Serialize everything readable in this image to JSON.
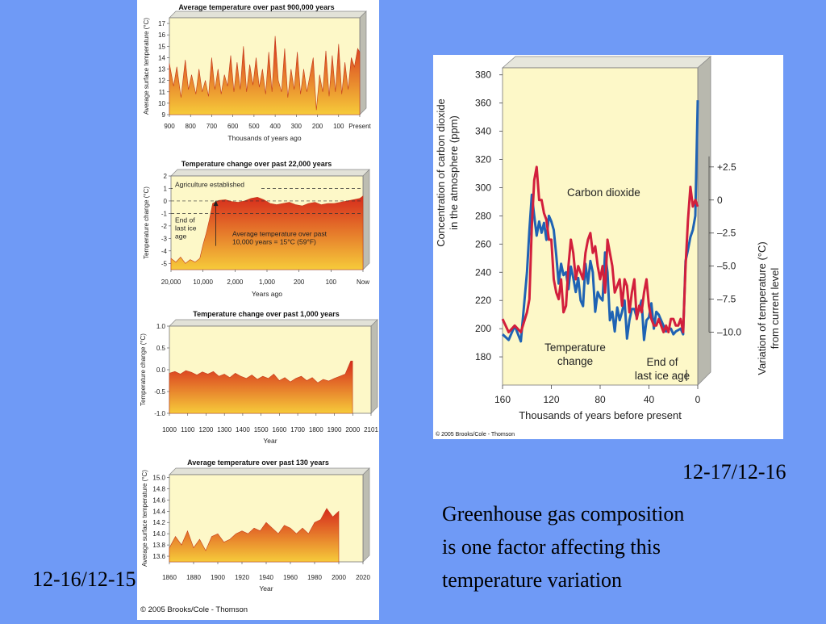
{
  "colors": {
    "background": "#6f9af6",
    "panel_fill": "#fdf8c8",
    "fill_top": "#d62a1c",
    "fill_bottom": "#f6cb3a",
    "co2": "#1f63b4",
    "temp": "#d21f3c"
  },
  "slide": {
    "left_code": "12-16/12-15",
    "right_code": "12-17/12-16",
    "caption_lines": [
      "Greenhouse gas composition",
      "is one factor affecting this",
      "temperature variation"
    ]
  },
  "left_copyright": "© 2005 Brooks/Cole - Thomson",
  "right_copyright": "© 2005 Brooks/Cole - Thomson",
  "chart_data": [
    {
      "type": "area",
      "title": "Average temperature over past 900,000 years",
      "ylabel": "Average surface temperature (°C)",
      "xlabel": "Thousands of years ago",
      "xticks": [
        "900",
        "800",
        "700",
        "600",
        "500",
        "400",
        "300",
        "200",
        "100",
        "Present"
      ],
      "yticks": [
        "9",
        "10",
        "11",
        "12",
        "13",
        "14",
        "15",
        "16",
        "17"
      ],
      "xlim": [
        900,
        0
      ],
      "ylim": [
        9,
        17.5
      ],
      "x": [
        900,
        880,
        865,
        845,
        825,
        810,
        795,
        775,
        760,
        745,
        730,
        715,
        700,
        685,
        670,
        655,
        640,
        625,
        610,
        595,
        580,
        565,
        550,
        535,
        520,
        505,
        490,
        475,
        460,
        445,
        430,
        415,
        400,
        385,
        370,
        355,
        340,
        325,
        310,
        295,
        280,
        265,
        250,
        235,
        220,
        205,
        190,
        175,
        160,
        145,
        130,
        115,
        100,
        85,
        70,
        55,
        40,
        25,
        10,
        0
      ],
      "values": [
        13.5,
        11.5,
        13.2,
        10.5,
        13.8,
        11.2,
        12.5,
        10.8,
        13.0,
        11.0,
        12.0,
        10.6,
        14.0,
        11.2,
        13.0,
        10.8,
        12.5,
        11.5,
        14.2,
        11.0,
        13.6,
        11.2,
        15.0,
        11.0,
        13.4,
        11.6,
        14.0,
        11.4,
        13.0,
        10.8,
        14.5,
        11.0,
        15.9,
        12.0,
        11.0,
        14.8,
        10.5,
        13.0,
        11.2,
        14.5,
        10.8,
        13.0,
        11.0,
        12.5,
        14.0,
        9.4,
        12.5,
        11.0,
        14.6,
        10.6,
        14.2,
        11.0,
        15.2,
        10.8,
        13.6,
        11.2,
        14.0,
        13.2,
        14.8,
        14.5
      ]
    },
    {
      "type": "area",
      "title": "Temperature change over past 22,000 years",
      "ylabel": "Temperature change (°C)",
      "xlabel": "Years ago",
      "xticks": [
        "20,000",
        "10,000",
        "2,000",
        "1,000",
        "200",
        "100",
        "Now"
      ],
      "yticks": [
        "2",
        "1",
        "0",
        "-1",
        "-2",
        "-3",
        "-4",
        "-5"
      ],
      "xlim": [
        0,
        6
      ],
      "ylim": [
        -5.5,
        2
      ],
      "x": [
        0,
        0.15,
        0.3,
        0.45,
        0.6,
        0.75,
        0.9,
        1.0,
        1.1,
        1.2,
        1.3,
        1.5,
        1.7,
        1.9,
        2.1,
        2.3,
        2.5,
        2.7,
        2.9,
        3.1,
        3.3,
        3.5,
        3.7,
        3.9,
        4.1,
        4.3,
        4.5,
        4.7,
        4.9,
        5.1,
        5.3,
        5.5,
        5.7,
        5.9,
        6
      ],
      "values": [
        -4.6,
        -4.9,
        -4.5,
        -5.0,
        -4.7,
        -4.9,
        -4.6,
        -3.5,
        -2.6,
        -1.5,
        -0.2,
        0.05,
        0.1,
        -0.05,
        -0.1,
        0.0,
        0.2,
        0.3,
        0.1,
        -0.2,
        -0.3,
        -0.2,
        -0.1,
        -0.3,
        -0.4,
        -0.2,
        -0.1,
        -0.3,
        -0.2,
        -0.2,
        -0.1,
        0.0,
        0.1,
        0.2,
        0.4
      ],
      "reference_lines": [
        1,
        0,
        -1
      ],
      "annotations": [
        "Agriculture established",
        "End of\nlast ice\nage",
        "Average temperature over past\n10,000 years = 15°C (59°F)"
      ]
    },
    {
      "type": "area",
      "title": "Temperature change over past 1,000 years",
      "ylabel": "Temperature change (°C)",
      "xlabel": "Year",
      "xticks": [
        "1000",
        "1100",
        "1200",
        "1300",
        "1400",
        "1500",
        "1600",
        "1700",
        "1800",
        "1900",
        "2000",
        "2101"
      ],
      "yticks": [
        "1.0",
        "0.5",
        "0.0",
        "-0.5",
        "-1.0"
      ],
      "xlim": [
        1000,
        2101
      ],
      "ylim": [
        -1.0,
        1.0
      ],
      "x": [
        1000,
        1030,
        1060,
        1090,
        1120,
        1150,
        1180,
        1210,
        1240,
        1270,
        1300,
        1330,
        1360,
        1390,
        1420,
        1450,
        1480,
        1510,
        1540,
        1570,
        1600,
        1630,
        1660,
        1690,
        1720,
        1750,
        1780,
        1810,
        1840,
        1870,
        1900,
        1930,
        1960,
        1990,
        2000
      ],
      "values": [
        -0.08,
        -0.04,
        -0.1,
        -0.02,
        -0.06,
        -0.12,
        -0.05,
        -0.1,
        -0.04,
        -0.15,
        -0.1,
        -0.18,
        -0.08,
        -0.15,
        -0.2,
        -0.12,
        -0.22,
        -0.15,
        -0.2,
        -0.1,
        -0.25,
        -0.18,
        -0.28,
        -0.2,
        -0.15,
        -0.25,
        -0.18,
        -0.3,
        -0.22,
        -0.26,
        -0.2,
        -0.15,
        -0.1,
        0.2,
        0.2
      ]
    },
    {
      "type": "area",
      "title": "Average temperature over past 130 years",
      "ylabel": "Average surface temperature (°C)",
      "xlabel": "Year",
      "xticks": [
        "1860",
        "1880",
        "1900",
        "1920",
        "1940",
        "1960",
        "1980",
        "2000",
        "2020"
      ],
      "yticks": [
        "13.6",
        "13.8",
        "14.0",
        "14.2",
        "14.4",
        "14.6",
        "14.8",
        "15.0"
      ],
      "xlim": [
        1860,
        2020
      ],
      "ylim": [
        13.5,
        15.05
      ],
      "x": [
        1860,
        1865,
        1870,
        1875,
        1880,
        1885,
        1890,
        1895,
        1900,
        1905,
        1910,
        1915,
        1920,
        1925,
        1930,
        1935,
        1940,
        1945,
        1950,
        1955,
        1960,
        1965,
        1970,
        1975,
        1980,
        1985,
        1990,
        1995,
        2000
      ],
      "values": [
        13.75,
        13.95,
        13.8,
        14.05,
        13.75,
        13.9,
        13.7,
        13.95,
        14.0,
        13.85,
        13.9,
        14.0,
        14.05,
        14.0,
        14.1,
        14.05,
        14.2,
        14.1,
        14.0,
        14.15,
        14.1,
        14.0,
        14.1,
        14.0,
        14.2,
        14.25,
        14.45,
        14.3,
        14.4
      ]
    },
    {
      "type": "line",
      "xlabel": "Thousands of years before present",
      "ylabel": "Concentration of carbon dioxide\nin the atmosphere (ppm)",
      "y2label": "Variation of temperature (°C)\nfrom current level",
      "xticks": [
        "160",
        "120",
        "80",
        "40",
        "0"
      ],
      "yticks": [
        "180",
        "200",
        "220",
        "240",
        "260",
        "280",
        "300",
        "320",
        "340",
        "360",
        "380"
      ],
      "y2ticks": [
        "+2.5",
        "0",
        "–2.5",
        "–5.0",
        "–7.5",
        "–10.0"
      ],
      "xlim": [
        160,
        0
      ],
      "ylim": [
        160,
        385
      ],
      "y2lim": [
        -14,
        10
      ],
      "series": [
        {
          "name": "Carbon dioxide",
          "x": [
            160,
            155,
            150,
            145,
            140,
            138,
            136,
            134,
            132,
            130,
            128,
            126,
            124,
            122,
            120,
            118,
            116,
            114,
            112,
            110,
            108,
            106,
            104,
            102,
            100,
            98,
            96,
            94,
            92,
            90,
            88,
            86,
            84,
            82,
            80,
            78,
            76,
            74,
            72,
            70,
            68,
            66,
            64,
            62,
            60,
            58,
            56,
            54,
            52,
            50,
            48,
            46,
            44,
            42,
            40,
            38,
            36,
            34,
            32,
            30,
            28,
            26,
            24,
            22,
            20,
            18,
            16,
            14,
            12,
            10,
            8,
            6,
            4,
            2,
            0
          ],
          "values": [
            196,
            192,
            202,
            191,
            240,
            270,
            295,
            280,
            266,
            276,
            268,
            275,
            263,
            280,
            276,
            270,
            252,
            232,
            246,
            238,
            240,
            228,
            244,
            236,
            226,
            236,
            220,
            216,
            246,
            232,
            248,
            240,
            212,
            226,
            222,
            220,
            254,
            240,
            206,
            212,
            198,
            215,
            206,
            212,
            220,
            193,
            206,
            214,
            214,
            208,
            214,
            220,
            192,
            206,
            208,
            218,
            200,
            212,
            210,
            206,
            202,
            198,
            200,
            200,
            196,
            198,
            199,
            200,
            196,
            248,
            256,
            265,
            270,
            280,
            362
          ]
        },
        {
          "name": "Temperature change",
          "x": [
            160,
            155,
            150,
            145,
            140,
            138,
            136,
            134,
            132,
            130,
            128,
            126,
            124,
            122,
            120,
            118,
            116,
            114,
            112,
            110,
            108,
            106,
            104,
            102,
            100,
            98,
            96,
            94,
            92,
            90,
            88,
            86,
            84,
            82,
            80,
            78,
            76,
            74,
            72,
            70,
            68,
            66,
            64,
            62,
            60,
            58,
            56,
            54,
            52,
            50,
            48,
            46,
            44,
            42,
            40,
            38,
            36,
            34,
            32,
            30,
            28,
            26,
            24,
            22,
            20,
            18,
            16,
            14,
            12,
            10,
            8,
            6,
            4,
            2,
            0
          ],
          "values": [
            -9,
            -10,
            -9.5,
            -10,
            -8.5,
            -7.5,
            -2,
            1.5,
            2.5,
            0,
            0,
            -1,
            -1.5,
            -3,
            -3,
            -6,
            -7,
            -7.5,
            -6,
            -8.5,
            -8,
            -5,
            -3,
            -4,
            -6,
            -5,
            -5.5,
            -6,
            -4,
            -3,
            -2.5,
            -4,
            -3.5,
            -5,
            -6,
            -5,
            -7,
            -3,
            -4,
            -5,
            -7,
            -6.5,
            -6,
            -8,
            -6,
            -6.5,
            -8.5,
            -7,
            -6,
            -9,
            -8,
            -8.5,
            -7,
            -6,
            -8,
            -9,
            -9.5,
            -9.5,
            -9,
            -9.5,
            -10,
            -9.5,
            -10,
            -9,
            -9,
            -9.5,
            -9.5,
            -9,
            -10,
            -5,
            -1.5,
            1,
            -0.5,
            0,
            -0.5
          ]
        }
      ],
      "annotations": [
        "Carbon dioxide",
        "Temperature\nchange",
        "End of\nlast ice age"
      ]
    }
  ]
}
